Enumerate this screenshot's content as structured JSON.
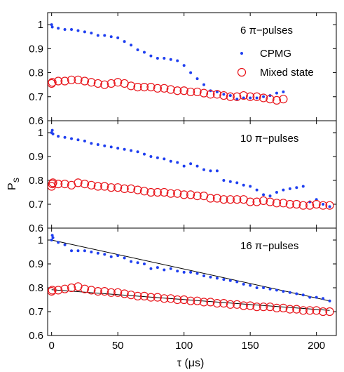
{
  "colors": {
    "cpmg": "#1f3ff0",
    "mixed": "#e8151b",
    "fit": "#000000",
    "frame": "#000000"
  },
  "labels": {
    "xlabel": "τ (μs)",
    "ylabel_main": "P",
    "ylabel_sub": "S"
  },
  "chart_data": [
    {
      "type": "scatter",
      "annotation": "6 π−pulses",
      "legend": {
        "position": "top-right",
        "entries": [
          "CPMG",
          "Mixed state"
        ]
      },
      "xlim": [
        -3,
        215
      ],
      "ylim": [
        0.6,
        1.05
      ],
      "xticks": [
        0,
        50,
        100,
        150,
        200
      ],
      "xtick_labels": [
        "",
        "",
        "",
        "",
        ""
      ],
      "yticks": [
        0.6,
        0.7,
        0.8,
        0.9,
        1.0
      ],
      "ytick_labels": [
        "0.6",
        "0.7",
        "0.8",
        "0.9",
        "1"
      ],
      "series": [
        {
          "name": "CPMG",
          "marker": "dot",
          "x": [
            0,
            0.5,
            5,
            10,
            15,
            20,
            25,
            30,
            35,
            40,
            45,
            50,
            55,
            60,
            65,
            70,
            75,
            80,
            85,
            90,
            95,
            100,
            105,
            110,
            115,
            120,
            125,
            130,
            135,
            140,
            145,
            150,
            155,
            160,
            165,
            170,
            175
          ],
          "y": [
            1.0,
            0.99,
            0.985,
            0.98,
            0.98,
            0.975,
            0.97,
            0.965,
            0.955,
            0.955,
            0.95,
            0.945,
            0.93,
            0.915,
            0.895,
            0.885,
            0.87,
            0.86,
            0.86,
            0.855,
            0.85,
            0.83,
            0.8,
            0.775,
            0.75,
            0.725,
            0.72,
            0.71,
            0.705,
            0.69,
            0.695,
            0.695,
            0.695,
            0.7,
            0.705,
            0.715,
            0.72
          ]
        },
        {
          "name": "Mixed state",
          "marker": "circle",
          "x": [
            0,
            0.5,
            5,
            10,
            15,
            20,
            25,
            30,
            35,
            40,
            45,
            50,
            55,
            60,
            65,
            70,
            75,
            80,
            85,
            90,
            95,
            100,
            105,
            110,
            115,
            120,
            125,
            130,
            135,
            140,
            145,
            150,
            155,
            160,
            165,
            170,
            175
          ],
          "y": [
            0.755,
            0.76,
            0.765,
            0.765,
            0.77,
            0.77,
            0.765,
            0.76,
            0.755,
            0.75,
            0.755,
            0.76,
            0.755,
            0.745,
            0.74,
            0.74,
            0.74,
            0.735,
            0.735,
            0.73,
            0.725,
            0.725,
            0.72,
            0.72,
            0.715,
            0.71,
            0.71,
            0.705,
            0.7,
            0.7,
            0.705,
            0.7,
            0.7,
            0.695,
            0.69,
            0.685,
            0.69
          ]
        }
      ]
    },
    {
      "type": "scatter",
      "annotation": "10 π−pulses",
      "xlim": [
        -3,
        215
      ],
      "ylim": [
        0.6,
        1.05
      ],
      "xticks": [
        0,
        50,
        100,
        150,
        200
      ],
      "xtick_labels": [
        "",
        "",
        "",
        "",
        ""
      ],
      "yticks": [
        0.6,
        0.7,
        0.8,
        0.9,
        1.0
      ],
      "ytick_labels": [
        "0.6",
        "0.7",
        "0.8",
        "0.9",
        "1"
      ],
      "series": [
        {
          "name": "CPMG",
          "marker": "dot",
          "x": [
            0,
            0.5,
            1,
            5,
            10,
            15,
            20,
            25,
            30,
            35,
            40,
            45,
            50,
            55,
            60,
            65,
            70,
            75,
            80,
            85,
            90,
            95,
            100,
            105,
            110,
            115,
            120,
            125,
            130,
            135,
            140,
            145,
            150,
            155,
            160,
            165,
            170,
            175,
            180,
            185,
            190,
            195,
            200,
            205,
            210
          ],
          "y": [
            1.0,
            1.01,
            0.995,
            0.985,
            0.98,
            0.975,
            0.97,
            0.965,
            0.955,
            0.95,
            0.945,
            0.94,
            0.935,
            0.93,
            0.925,
            0.92,
            0.91,
            0.9,
            0.895,
            0.89,
            0.88,
            0.875,
            0.86,
            0.87,
            0.86,
            0.845,
            0.84,
            0.84,
            0.8,
            0.795,
            0.79,
            0.78,
            0.775,
            0.76,
            0.74,
            0.735,
            0.75,
            0.76,
            0.765,
            0.77,
            0.775,
            0.71,
            0.72,
            0.7,
            0.69
          ]
        },
        {
          "name": "Mixed state",
          "marker": "circle",
          "x": [
            0,
            0.5,
            1,
            5,
            10,
            15,
            20,
            25,
            30,
            35,
            40,
            45,
            50,
            55,
            60,
            65,
            70,
            75,
            80,
            85,
            90,
            95,
            100,
            105,
            110,
            115,
            120,
            125,
            130,
            135,
            140,
            145,
            150,
            155,
            160,
            165,
            170,
            175,
            180,
            185,
            190,
            195,
            200,
            205,
            210
          ],
          "y": [
            0.775,
            0.785,
            0.79,
            0.785,
            0.785,
            0.78,
            0.79,
            0.785,
            0.78,
            0.775,
            0.775,
            0.77,
            0.77,
            0.765,
            0.765,
            0.76,
            0.755,
            0.75,
            0.75,
            0.75,
            0.745,
            0.745,
            0.74,
            0.74,
            0.735,
            0.735,
            0.725,
            0.725,
            0.72,
            0.72,
            0.72,
            0.72,
            0.71,
            0.71,
            0.715,
            0.71,
            0.705,
            0.705,
            0.7,
            0.7,
            0.695,
            0.695,
            0.7,
            0.695,
            0.695
          ]
        }
      ]
    },
    {
      "type": "scatter",
      "annotation": "16 π−pulses",
      "xlim": [
        -3,
        215
      ],
      "ylim": [
        0.6,
        1.05
      ],
      "xticks": [
        0,
        50,
        100,
        150,
        200
      ],
      "xtick_labels": [
        "0",
        "50",
        "100",
        "150",
        "200"
      ],
      "yticks": [
        0.6,
        0.7,
        0.8,
        0.9,
        1.0
      ],
      "ytick_labels": [
        "0.6",
        "0.7",
        "0.8",
        "0.9",
        "1"
      ],
      "fits": [
        {
          "x": [
            0,
            210
          ],
          "y": [
            1.0,
            0.745
          ]
        },
        {
          "x": [
            0,
            210
          ],
          "y": [
            0.792,
            0.705
          ]
        }
      ],
      "series": [
        {
          "name": "CPMG",
          "marker": "dot",
          "x": [
            0,
            0.5,
            1,
            5,
            10,
            15,
            20,
            25,
            30,
            35,
            40,
            45,
            50,
            55,
            60,
            65,
            70,
            75,
            80,
            85,
            90,
            95,
            100,
            105,
            110,
            115,
            120,
            125,
            130,
            135,
            140,
            145,
            150,
            155,
            160,
            165,
            170,
            175,
            180,
            185,
            190,
            195,
            200,
            205,
            210
          ],
          "y": [
            1.0,
            1.02,
            1.01,
            0.99,
            0.98,
            0.955,
            0.955,
            0.955,
            0.95,
            0.945,
            0.94,
            0.93,
            0.935,
            0.925,
            0.91,
            0.905,
            0.9,
            0.88,
            0.885,
            0.875,
            0.88,
            0.87,
            0.865,
            0.865,
            0.86,
            0.85,
            0.845,
            0.84,
            0.835,
            0.83,
            0.825,
            0.815,
            0.81,
            0.8,
            0.8,
            0.795,
            0.79,
            0.785,
            0.78,
            0.775,
            0.77,
            0.76,
            0.76,
            0.755,
            0.745
          ]
        },
        {
          "name": "Mixed state",
          "marker": "circle",
          "x": [
            0,
            0.5,
            5,
            10,
            15,
            20,
            25,
            30,
            35,
            40,
            45,
            50,
            55,
            60,
            65,
            70,
            75,
            80,
            85,
            90,
            95,
            100,
            105,
            110,
            115,
            120,
            125,
            130,
            135,
            140,
            145,
            150,
            155,
            160,
            165,
            170,
            175,
            180,
            185,
            190,
            195,
            200,
            205,
            210
          ],
          "y": [
            0.785,
            0.79,
            0.79,
            0.795,
            0.8,
            0.805,
            0.795,
            0.79,
            0.785,
            0.785,
            0.78,
            0.78,
            0.775,
            0.77,
            0.765,
            0.765,
            0.76,
            0.76,
            0.755,
            0.755,
            0.75,
            0.75,
            0.745,
            0.745,
            0.74,
            0.74,
            0.735,
            0.735,
            0.73,
            0.73,
            0.725,
            0.725,
            0.72,
            0.72,
            0.72,
            0.715,
            0.715,
            0.71,
            0.71,
            0.705,
            0.705,
            0.705,
            0.7,
            0.7
          ]
        }
      ]
    }
  ]
}
